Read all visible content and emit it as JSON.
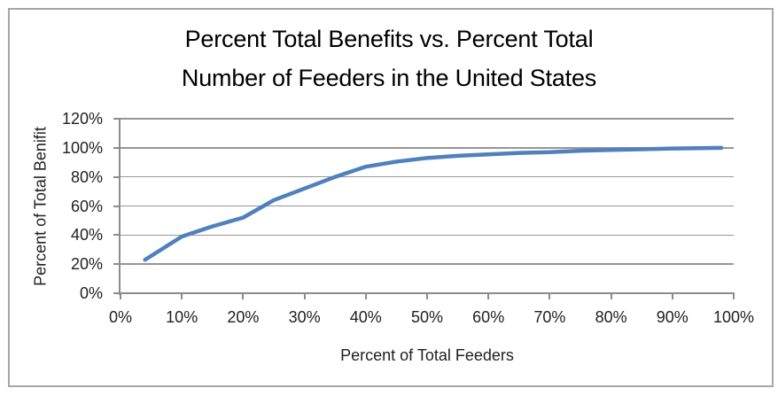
{
  "window": {
    "background": "#ffffff",
    "border_color": "#a6a6a6"
  },
  "colors": {
    "accent_line": "#4F81BD",
    "gridline": "#969696",
    "axis": "#8c8c8c",
    "label_text": "#1f1f1f",
    "title_text": "#000000"
  },
  "chart_data": {
    "type": "line",
    "title": "Percent Total Benefits vs. Percent Total Number of Feeders in the United States",
    "title_lines": [
      "Percent Total Benefits vs. Percent Total",
      "Number of Feeders in the United States"
    ],
    "xlabel": "Percent of Total Feeders",
    "ylabel": "Percent of Total Benifit",
    "xlim": [
      0,
      100
    ],
    "ylim": [
      0,
      120
    ],
    "x_tick_labels": [
      "0%",
      "10%",
      "20%",
      "30%",
      "40%",
      "50%",
      "60%",
      "70%",
      "80%",
      "90%",
      "100%"
    ],
    "x_tick_values": [
      0,
      10,
      20,
      30,
      40,
      50,
      60,
      70,
      80,
      90,
      100
    ],
    "y_tick_labels": [
      "0%",
      "20%",
      "40%",
      "60%",
      "80%",
      "100%",
      "120%"
    ],
    "y_tick_values": [
      0,
      20,
      40,
      60,
      80,
      100,
      120
    ],
    "grid": "horizontal",
    "legend": "none",
    "series": [
      {
        "name": "Percent of Total Benefit",
        "color": "#4F81BD",
        "x": [
          4,
          10,
          15,
          20,
          25,
          30,
          35,
          40,
          45,
          50,
          55,
          60,
          65,
          70,
          75,
          80,
          85,
          90,
          98
        ],
        "y": [
          23,
          39,
          46,
          52,
          64,
          72,
          80,
          87,
          90.5,
          93,
          94.5,
          95.5,
          96.5,
          97,
          98,
          98.5,
          99,
          99.5,
          100
        ]
      }
    ]
  }
}
